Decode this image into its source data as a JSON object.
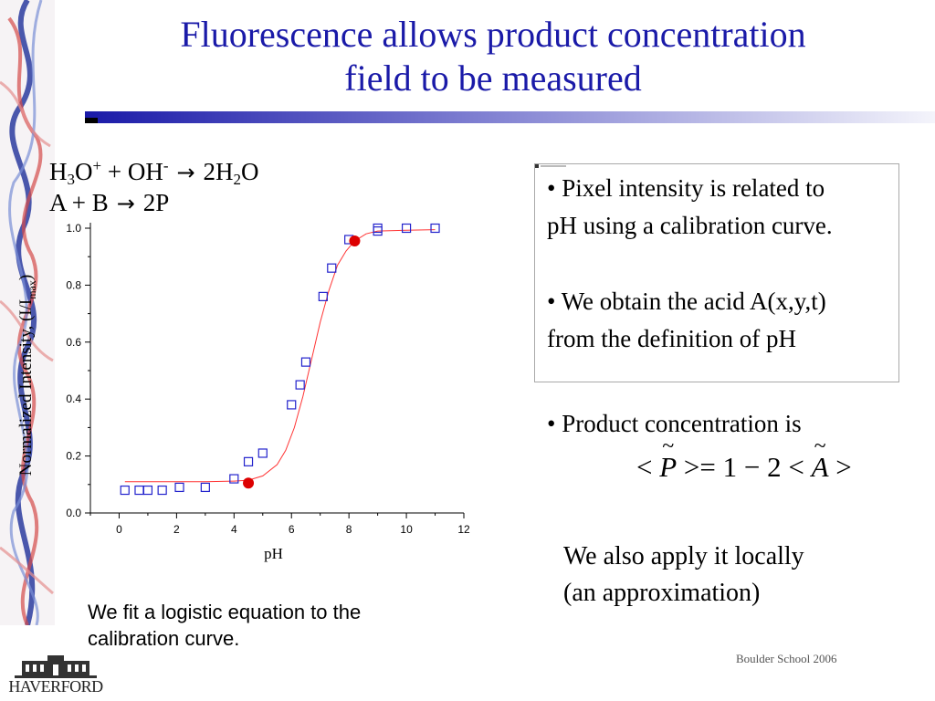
{
  "slide": {
    "title_line1": "Fluorescence allows product concentration",
    "title_line2": "field to be measured",
    "footer": "Boulder School 2006",
    "logo_text": "HAVERFORD"
  },
  "equations": {
    "eq1": {
      "h": "H",
      "three": "3",
      "o": "O",
      "plus_sup": "+",
      "mid": " + OH",
      "minus_sup": "-",
      "rhs_a": "2H",
      "two": "2",
      "rhs_b": "O"
    },
    "eq2": {
      "lhs": "A + B",
      "rhs": "2P"
    },
    "arrow": "→"
  },
  "caption": {
    "line1": "We fit a logistic equation to the",
    "line2": "calibration curve."
  },
  "bullets": {
    "b1_line1": "• Pixel intensity is related to",
    "b1_line2": "pH using a calibration curve.",
    "b2_line1": "• We obtain the acid A(x,y,t)",
    "b2_line2": "from the definition of pH",
    "b3": "• Product concentration is"
  },
  "formula": {
    "lt1": "< ",
    "p": "P",
    "mid": " >= 1 − 2 < ",
    "a": "A",
    "gt": " >",
    "tilde": "~"
  },
  "local_note": {
    "line1": "We also apply  it locally",
    "line2": "(an approximation)"
  },
  "colors": {
    "title": "#1a1aa8",
    "marker_square": "#2222cc",
    "fit_curve": "#ff3333",
    "dot": "#dd0000"
  },
  "chart_data": {
    "type": "scatter",
    "xlabel": "pH",
    "ylabel": "Normalized Intensity, (I/I",
    "ylabel_sub": "max",
    "ylabel_close": ")",
    "xlim": [
      -1,
      12
    ],
    "ylim": [
      0,
      1.0
    ],
    "x_ticks": [
      0,
      2,
      4,
      6,
      8,
      10,
      12
    ],
    "y_ticks": [
      0.0,
      0.2,
      0.4,
      0.6,
      0.8,
      1.0
    ],
    "y_tick_labels": [
      "0.0",
      "0.2",
      "0.4",
      "0.6",
      "0.8",
      "1.0"
    ],
    "grid": false,
    "series": [
      {
        "kind": "squares",
        "x": [
          0.2,
          0.7,
          1.0,
          1.5,
          2.1,
          3.0,
          4.0,
          4.5,
          5.0,
          6.0,
          6.3,
          6.5,
          7.1,
          7.4,
          8.0,
          9.0,
          9.0,
          10.0,
          11.0
        ],
        "y": [
          0.08,
          0.08,
          0.08,
          0.08,
          0.09,
          0.09,
          0.12,
          0.18,
          0.21,
          0.38,
          0.45,
          0.53,
          0.76,
          0.86,
          0.96,
          1.0,
          0.99,
          1.0,
          1.0
        ]
      },
      {
        "kind": "logistic-fit",
        "x": [
          0.2,
          1,
          2,
          3,
          4,
          4.5,
          5,
          5.5,
          5.8,
          6.1,
          6.4,
          6.7,
          7.0,
          7.3,
          7.6,
          7.9,
          8.2,
          8.6,
          9,
          10,
          11
        ],
        "y": [
          0.11,
          0.11,
          0.11,
          0.11,
          0.112,
          0.115,
          0.13,
          0.17,
          0.22,
          0.3,
          0.41,
          0.54,
          0.67,
          0.78,
          0.87,
          0.92,
          0.955,
          0.98,
          0.99,
          0.993,
          0.995
        ]
      },
      {
        "kind": "dots",
        "x": [
          4.5,
          8.2
        ],
        "y": [
          0.105,
          0.955
        ]
      }
    ]
  }
}
